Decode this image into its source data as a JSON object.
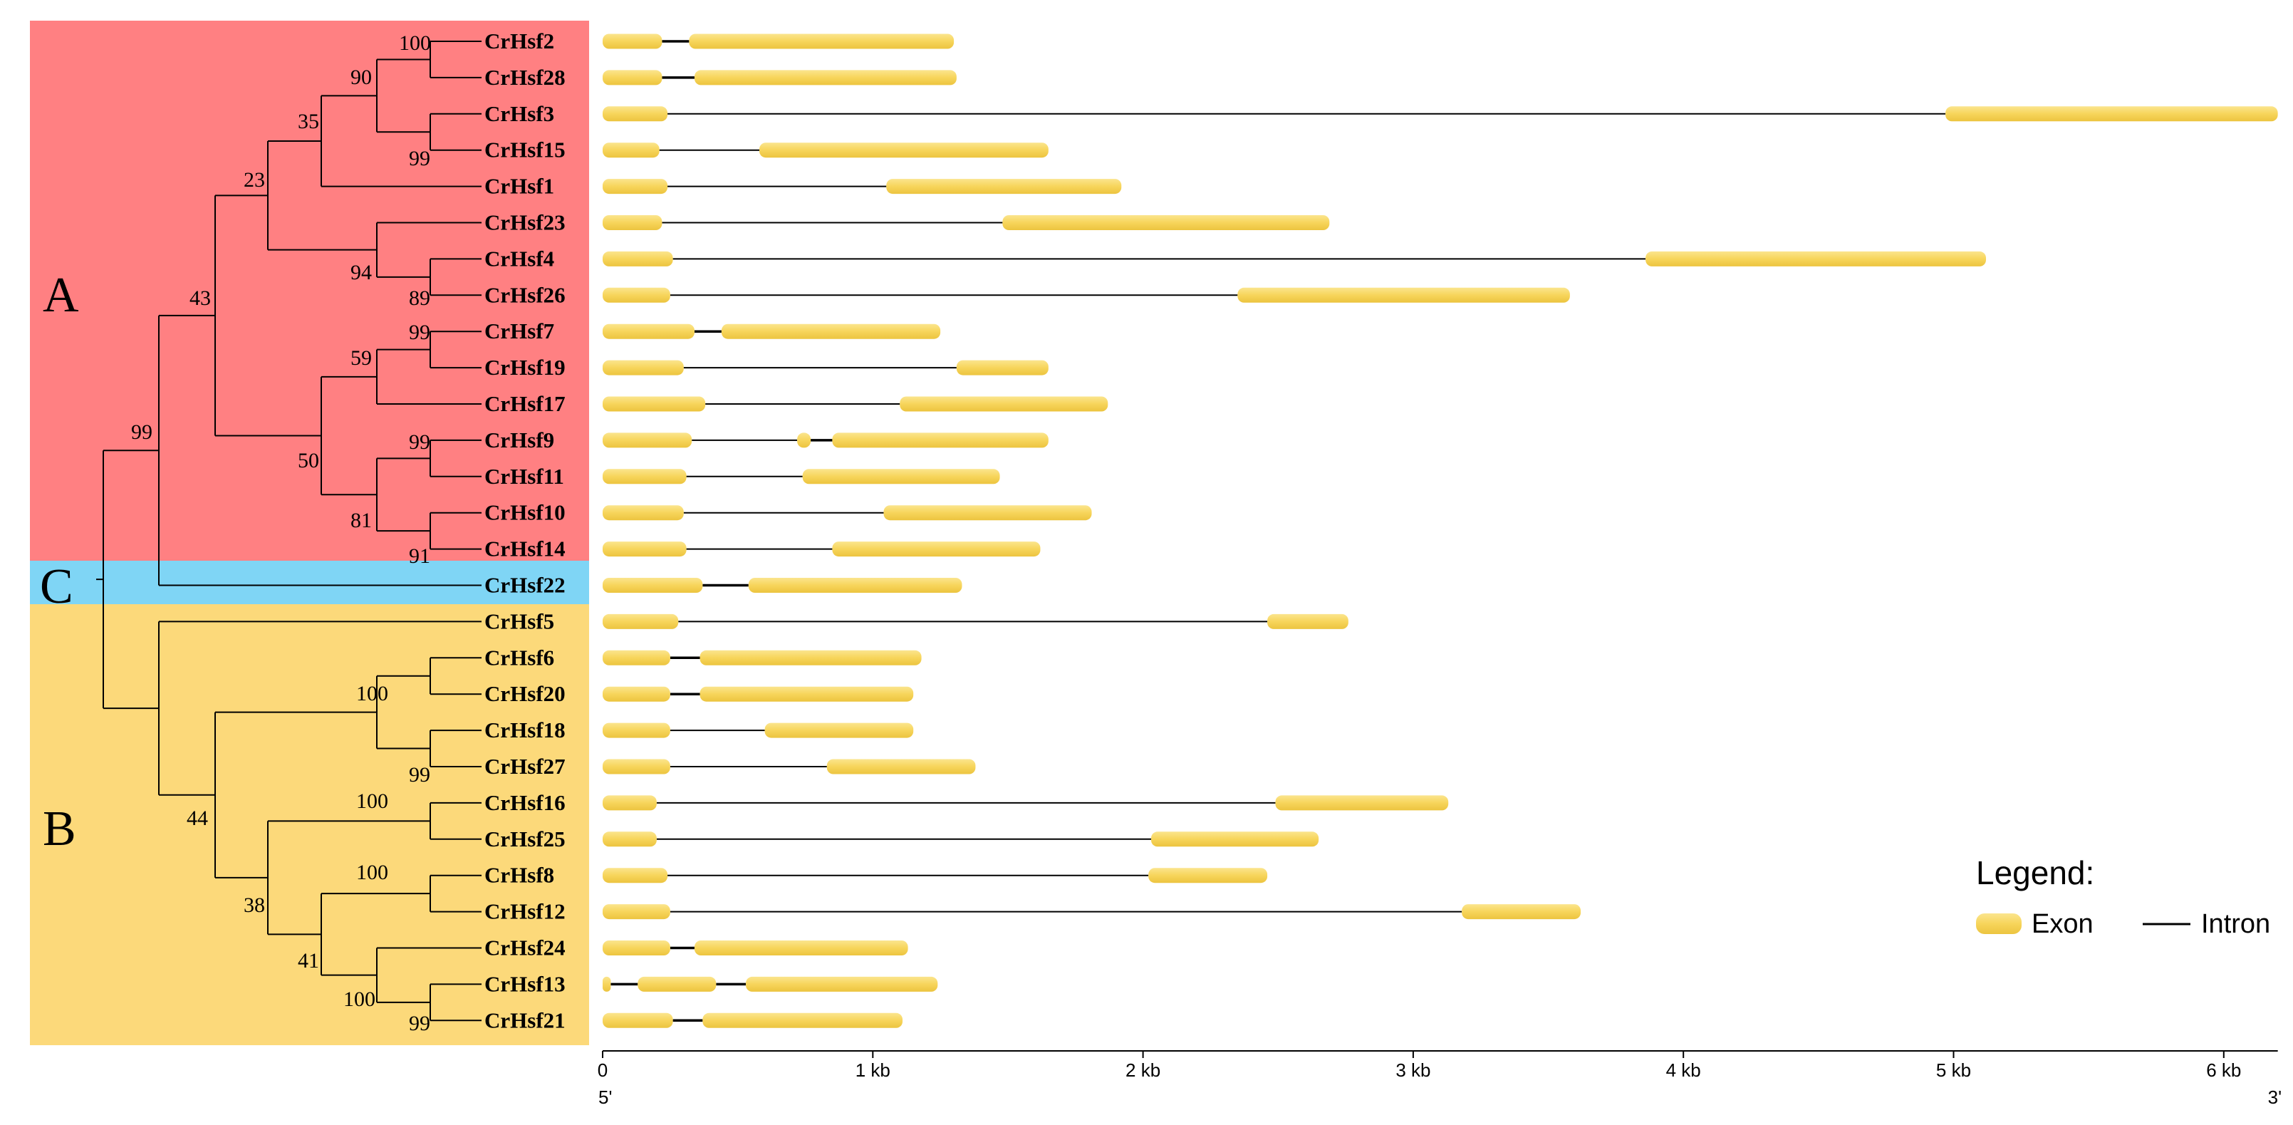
{
  "groups": [
    {
      "label": "A",
      "color": "#ff8082",
      "from": 0,
      "to": 14
    },
    {
      "label": "C",
      "color": "#7fd5f5",
      "from": 15,
      "to": 15
    },
    {
      "label": "B",
      "color": "#fcd97a",
      "from": 16,
      "to": 27
    }
  ],
  "genes": [
    {
      "name": "CrHsf2",
      "exons": [
        [
          0,
          0.22
        ],
        [
          0.32,
          1.3
        ]
      ]
    },
    {
      "name": "CrHsf28",
      "exons": [
        [
          0,
          0.22
        ],
        [
          0.34,
          1.31
        ]
      ]
    },
    {
      "name": "CrHsf3",
      "exons": [
        [
          0,
          0.24
        ],
        [
          4.97,
          6.2
        ]
      ]
    },
    {
      "name": "CrHsf15",
      "exons": [
        [
          0,
          0.21
        ],
        [
          0.58,
          1.65
        ]
      ]
    },
    {
      "name": "CrHsf1",
      "exons": [
        [
          0,
          0.24
        ],
        [
          1.05,
          1.92
        ]
      ]
    },
    {
      "name": "CrHsf23",
      "exons": [
        [
          0,
          0.22
        ],
        [
          1.48,
          2.69
        ]
      ]
    },
    {
      "name": "CrHsf4",
      "exons": [
        [
          0,
          0.26
        ],
        [
          3.86,
          5.12
        ]
      ]
    },
    {
      "name": "CrHsf26",
      "exons": [
        [
          0,
          0.25
        ],
        [
          2.35,
          3.58
        ]
      ]
    },
    {
      "name": "CrHsf7",
      "exons": [
        [
          0,
          0.34
        ],
        [
          0.44,
          1.25
        ]
      ]
    },
    {
      "name": "CrHsf19",
      "exons": [
        [
          0,
          0.3
        ],
        [
          1.31,
          1.65
        ]
      ]
    },
    {
      "name": "CrHsf17",
      "exons": [
        [
          0,
          0.38
        ],
        [
          1.1,
          1.87
        ]
      ]
    },
    {
      "name": "CrHsf9",
      "exons": [
        [
          0,
          0.33
        ],
        [
          0.72,
          0.77
        ],
        [
          0.85,
          1.65
        ]
      ]
    },
    {
      "name": "CrHsf11",
      "exons": [
        [
          0,
          0.31
        ],
        [
          0.74,
          1.47
        ]
      ]
    },
    {
      "name": "CrHsf10",
      "exons": [
        [
          0,
          0.3
        ],
        [
          1.04,
          1.81
        ]
      ]
    },
    {
      "name": "CrHsf14",
      "exons": [
        [
          0,
          0.31
        ],
        [
          0.85,
          1.62
        ]
      ]
    },
    {
      "name": "CrHsf22",
      "exons": [
        [
          0,
          0.37
        ],
        [
          0.54,
          1.33
        ]
      ]
    },
    {
      "name": "CrHsf5",
      "exons": [
        [
          0,
          0.28
        ],
        [
          2.46,
          2.76
        ]
      ]
    },
    {
      "name": "CrHsf6",
      "exons": [
        [
          0,
          0.25
        ],
        [
          0.36,
          1.18
        ]
      ]
    },
    {
      "name": "CrHsf20",
      "exons": [
        [
          0,
          0.25
        ],
        [
          0.36,
          1.15
        ]
      ]
    },
    {
      "name": "CrHsf18",
      "exons": [
        [
          0,
          0.25
        ],
        [
          0.6,
          1.15
        ]
      ]
    },
    {
      "name": "CrHsf27",
      "exons": [
        [
          0,
          0.25
        ],
        [
          0.83,
          1.38
        ]
      ]
    },
    {
      "name": "CrHsf16",
      "exons": [
        [
          0,
          0.2
        ],
        [
          2.49,
          3.13
        ]
      ]
    },
    {
      "name": "CrHsf25",
      "exons": [
        [
          0,
          0.2
        ],
        [
          2.03,
          2.65
        ]
      ]
    },
    {
      "name": "CrHsf8",
      "exons": [
        [
          0,
          0.24
        ],
        [
          2.02,
          2.46
        ]
      ]
    },
    {
      "name": "CrHsf12",
      "exons": [
        [
          0,
          0.25
        ],
        [
          3.18,
          3.62
        ]
      ]
    },
    {
      "name": "CrHsf24",
      "exons": [
        [
          0,
          0.25
        ],
        [
          0.34,
          1.13
        ]
      ]
    },
    {
      "name": "CrHsf13",
      "exons": [
        [
          0,
          0.03
        ],
        [
          0.13,
          0.42
        ],
        [
          0.53,
          1.24
        ]
      ]
    },
    {
      "name": "CrHsf21",
      "exons": [
        [
          0,
          0.26
        ],
        [
          0.37,
          1.11
        ]
      ]
    }
  ],
  "tree": {
    "bootstrap": [
      "100",
      "90",
      "35",
      "99",
      "23",
      "94",
      "89",
      "43",
      "99",
      "59",
      "50",
      "99",
      "81",
      "91",
      "99",
      "100",
      "99",
      "44",
      "100",
      "38",
      "100",
      "41",
      "100",
      "99"
    ]
  },
  "axis": {
    "ticks": [
      "0",
      "1 kb",
      "2 kb",
      "3 kb",
      "4 kb",
      "5 kb",
      "6 kb"
    ],
    "tick_values_kb": [
      0,
      1,
      2,
      3,
      4,
      5,
      6
    ],
    "max_kb": 6.2,
    "start_label": "5'",
    "end_label": "3'"
  },
  "legend": {
    "title": "Legend:",
    "exon_label": "Exon",
    "intron_label": "Intron",
    "exon_color": "#f7d55b",
    "intron_color": "#000000"
  }
}
